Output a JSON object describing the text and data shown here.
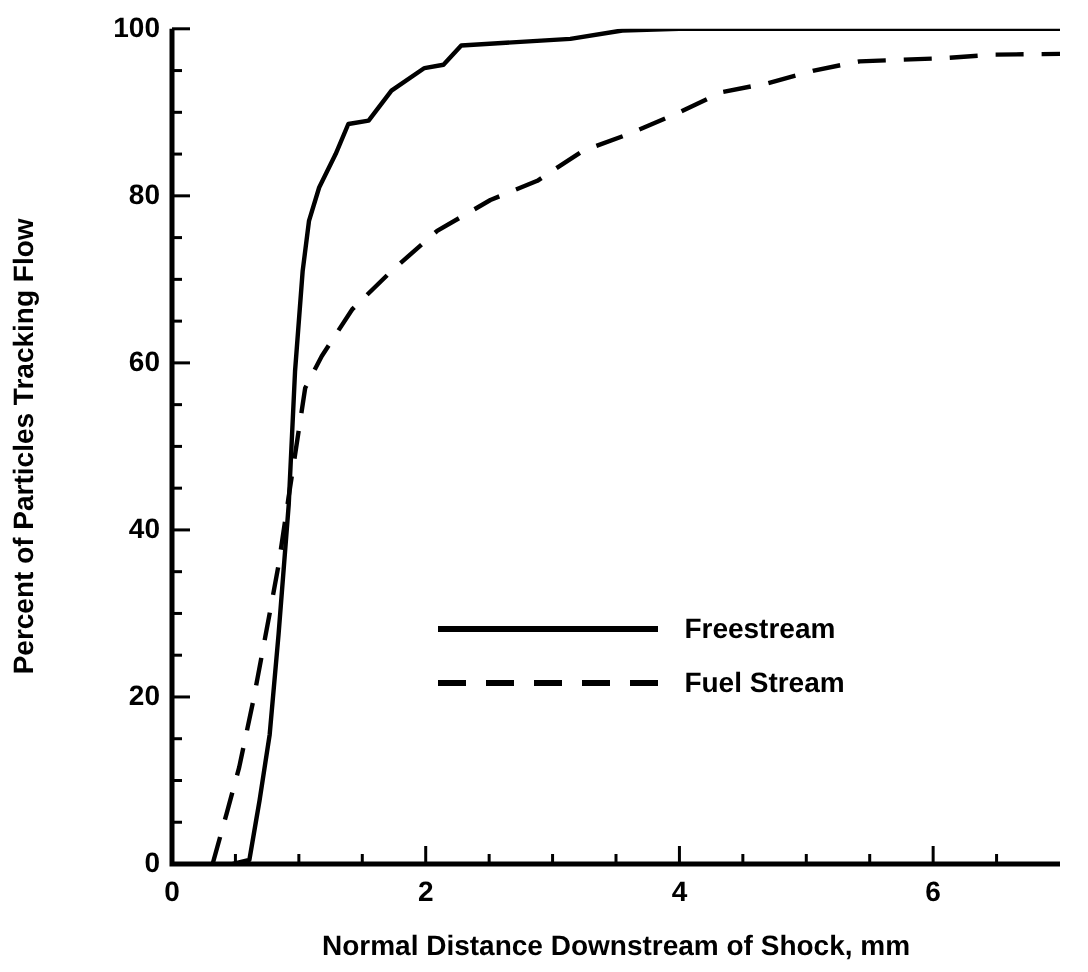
{
  "chart_data": {
    "type": "line",
    "xlabel": "Normal Distance Downstream of Shock, mm",
    "ylabel": "Percent of Particles Tracking Flow",
    "xlim": [
      0,
      7
    ],
    "ylim": [
      0,
      100
    ],
    "xticks": [
      0,
      {
        "value": 0.5,
        "label": null
      },
      {
        "value": 1,
        "label": null
      },
      {
        "value": 1.5,
        "label": null
      },
      2,
      {
        "value": 2.5,
        "label": null
      },
      {
        "value": 3,
        "label": null
      },
      {
        "value": 3.5,
        "label": null
      },
      4,
      {
        "value": 4.5,
        "label": null
      },
      {
        "value": 5,
        "label": null
      },
      {
        "value": 5.5,
        "label": null
      },
      6,
      {
        "value": 6.5,
        "label": null
      }
    ],
    "yticks": [
      0,
      {
        "value": 5,
        "label": null
      },
      {
        "value": 10,
        "label": null
      },
      {
        "value": 15,
        "label": null
      },
      20,
      {
        "value": 25,
        "label": null
      },
      {
        "value": 30,
        "label": null
      },
      {
        "value": 35,
        "label": null
      },
      40,
      {
        "value": 45,
        "label": null
      },
      {
        "value": 50,
        "label": null
      },
      {
        "value": 55,
        "label": null
      },
      60,
      {
        "value": 65,
        "label": null
      },
      {
        "value": 70,
        "label": null
      },
      {
        "value": 75,
        "label": null
      },
      80,
      {
        "value": 85,
        "label": null
      },
      {
        "value": 90,
        "label": null
      },
      {
        "value": 95,
        "label": null
      },
      100
    ],
    "grid": false,
    "legend": "bottom right",
    "marker": "none",
    "series": [
      {
        "name": "Freestream",
        "color": "#000000",
        "line_style": "solid",
        "x": [
          0.48,
          0.61,
          0.69,
          0.77,
          0.84,
          0.92,
          0.97,
          1.03,
          1.08,
          1.16,
          1.29,
          1.39,
          1.55,
          1.73,
          1.99,
          2.14,
          2.28,
          3.14,
          3.55,
          4.0,
          7.0
        ],
        "values": [
          0,
          0.5,
          7.6,
          15.5,
          27.5,
          43,
          59,
          71,
          77,
          81,
          85,
          88.6,
          89,
          92.6,
          95.3,
          95.7,
          98,
          98.8,
          99.8,
          100,
          100
        ]
      },
      {
        "name": "Fuel Stream",
        "color": "#000000",
        "line_style": "dashed",
        "x": [
          0.32,
          0.43,
          0.53,
          0.64,
          0.77,
          0.84,
          0.92,
          1.0,
          1.05,
          1.18,
          1.42,
          1.73,
          2.09,
          2.51,
          2.88,
          3.24,
          3.6,
          3.97,
          4.33,
          4.7,
          5.06,
          5.42,
          6.1,
          6.47,
          7.0
        ],
        "values": [
          0,
          6,
          11.6,
          19.5,
          30,
          35.8,
          44,
          52,
          57,
          60.8,
          66.4,
          71,
          75.8,
          79.5,
          81.8,
          85.4,
          87.4,
          89.8,
          92.4,
          93.5,
          95,
          96.1,
          96.5,
          96.9,
          97
        ]
      }
    ]
  }
}
